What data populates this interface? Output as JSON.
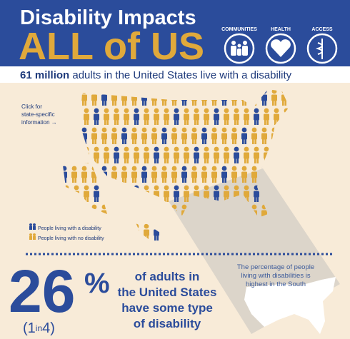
{
  "header": {
    "title_line1": "Disability Impacts",
    "title_line2": "ALL of US",
    "icons": [
      "COMMUNITIES",
      "HEALTH",
      "ACCESS"
    ]
  },
  "subtitle": {
    "bold": "61 million",
    "rest": "adults in the United States live with a disability"
  },
  "map": {
    "click_note": [
      "Click for",
      "state-specific",
      "information →"
    ],
    "legend": [
      "People living with a disability",
      "People living with no disability"
    ]
  },
  "stat": {
    "number": "26",
    "percent": "%",
    "ratio": [
      "(1",
      "in",
      "4)"
    ],
    "description": [
      "of adults in",
      "the United States",
      "have some type",
      "of disability"
    ]
  },
  "south_note": [
    "The percentage of people",
    "living with disabilities is",
    "highest in the South"
  ]
}
